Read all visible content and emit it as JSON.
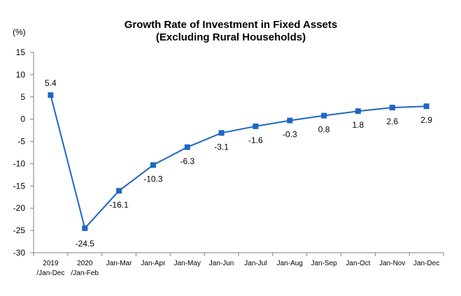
{
  "chart_data": {
    "type": "line",
    "title": "Growth Rate of Investment in Fixed Assets",
    "subtitle": "(Excluding Rural Households)",
    "ylabel": "(%)",
    "xlabel": "",
    "ylim": [
      -30,
      15
    ],
    "yticks": [
      15,
      10,
      5,
      0,
      -5,
      -10,
      -15,
      -20,
      -25,
      -30
    ],
    "grid": false,
    "categories": [
      [
        "2019",
        "/Jan-Dec"
      ],
      [
        "2020",
        "/Jan-Feb"
      ],
      [
        "Jan-Mar"
      ],
      [
        "Jan-Apr"
      ],
      [
        "Jan-May"
      ],
      [
        "Jan-Jun"
      ],
      [
        "Jan-Jul"
      ],
      [
        "Jan-Aug"
      ],
      [
        "Jan-Sep"
      ],
      [
        "Jan-Oct"
      ],
      [
        "Jan-Nov"
      ],
      [
        "Jan-Dec"
      ]
    ],
    "series": [
      {
        "values": [
          5.4,
          -24.5,
          -16.1,
          -10.3,
          -6.3,
          -3.1,
          -1.6,
          -0.3,
          0.8,
          1.8,
          2.6,
          2.9
        ],
        "labels": [
          "5.4",
          "-24.5",
          "-16.1",
          "-10.3",
          "-6.3",
          "-3.1",
          "-1.6",
          "-0.3",
          "0.8",
          "1.8",
          "2.6",
          "2.9"
        ],
        "color": "#1F66C3"
      }
    ]
  }
}
